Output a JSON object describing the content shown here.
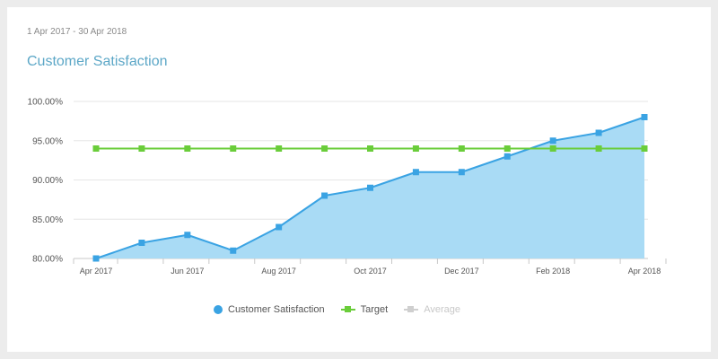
{
  "header": {
    "date_range": "1 Apr 2017 - 30 Apr 2018",
    "title": "Customer Satisfaction"
  },
  "colors": {
    "satisfaction": "#3aa3e3",
    "satisfaction_fill": "#a9dbf5",
    "target": "#6acd3a",
    "average": "#cfcfcf",
    "grid": "#e6e6e6",
    "axis": "#c8c8c8"
  },
  "chart_data": {
    "type": "area",
    "x": [
      "Apr 2017",
      "May 2017",
      "Jun 2017",
      "Jul 2017",
      "Aug 2017",
      "Sep 2017",
      "Oct 2017",
      "Nov 2017",
      "Dec 2017",
      "Jan 2018",
      "Feb 2018",
      "Mar 2018",
      "Apr 2018"
    ],
    "x_tick_labels": [
      "Apr 2017",
      "Jun 2017",
      "Aug 2017",
      "Oct 2017",
      "Dec 2017",
      "Feb 2018",
      "Apr 2018"
    ],
    "y_tick_labels": [
      "80.00%",
      "85.00%",
      "90.00%",
      "95.00%",
      "100.00%"
    ],
    "ylim": [
      80,
      100
    ],
    "y_ticks": [
      80,
      85,
      90,
      95,
      100
    ],
    "grid": true,
    "legend_position": "bottom",
    "series": [
      {
        "name": "Customer Satisfaction",
        "type": "area",
        "values": [
          80,
          82,
          83,
          81,
          84,
          88,
          89,
          91,
          91,
          93,
          95,
          96,
          98
        ]
      },
      {
        "name": "Target",
        "type": "line",
        "values": [
          94,
          94,
          94,
          94,
          94,
          94,
          94,
          94,
          94,
          94,
          94,
          94,
          94
        ]
      }
    ]
  },
  "legend": [
    {
      "label": "Customer Satisfaction",
      "enabled": true
    },
    {
      "label": "Target",
      "enabled": true
    },
    {
      "label": "Average",
      "enabled": false
    }
  ]
}
